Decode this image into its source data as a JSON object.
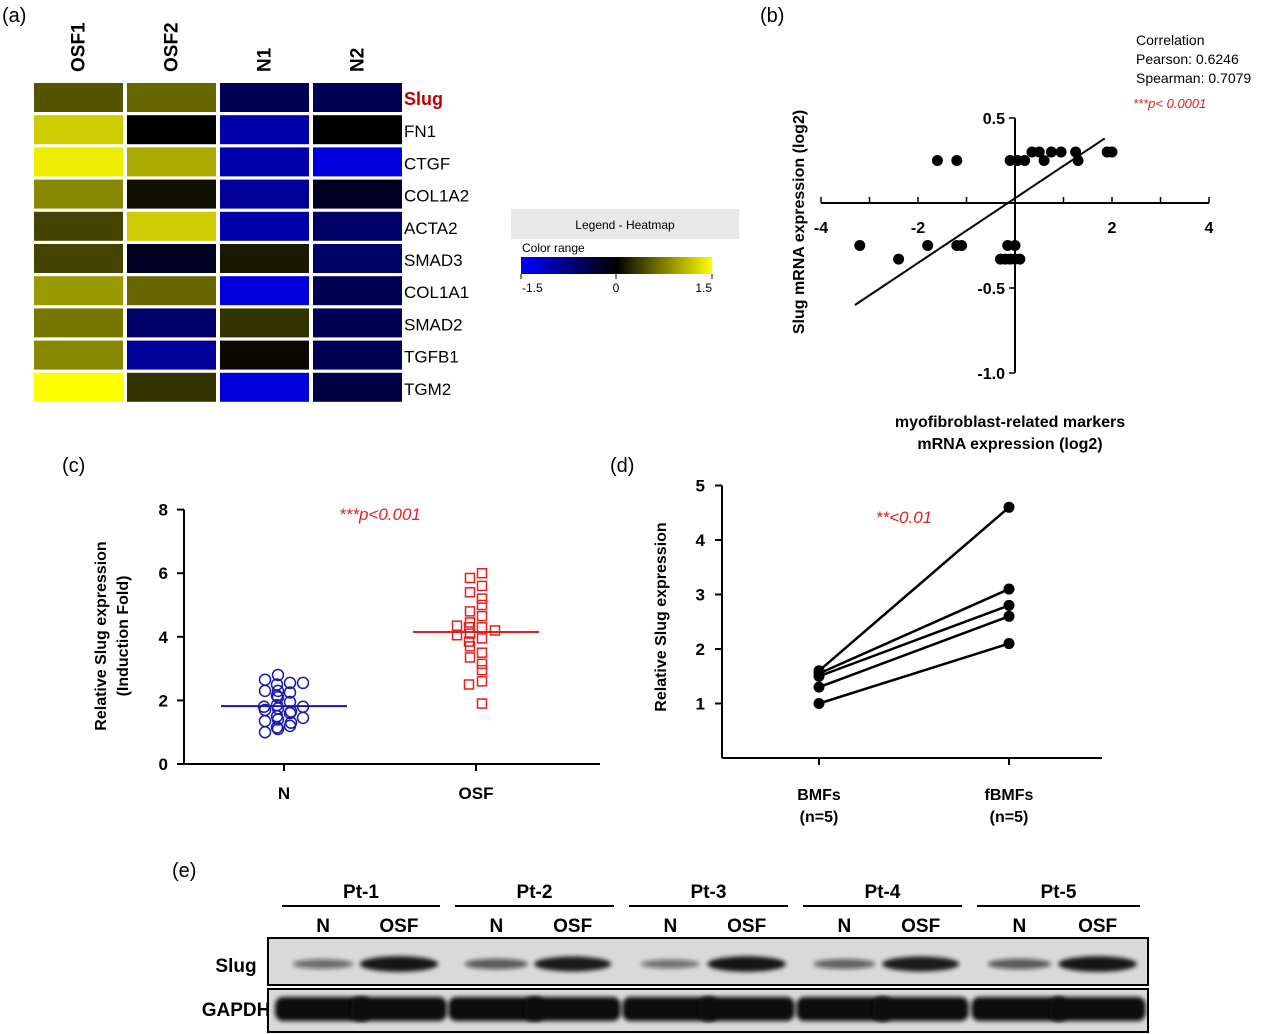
{
  "colors": {
    "low": "#0000ff",
    "mid": "#000000",
    "high": "#ffff00",
    "n_group": "#1a1aa6",
    "osf_group": "#e32020",
    "significance": "#e32020",
    "slug_label": "#c00000"
  },
  "panel_labels": [
    "(a)",
    "(b)",
    "(c)",
    "(d)",
    "(e)"
  ],
  "chart_data": [
    {
      "type": "heatmap",
      "columns": [
        "OSF1",
        "OSF2",
        "N1",
        "N2"
      ],
      "rows": [
        "Slug",
        "FN1",
        "CTGF",
        "COL1A2",
        "ACTA2",
        "SMAD3",
        "COL1A1",
        "SMAD2",
        "TGFB1",
        "TGM2"
      ],
      "highlight_row": "Slug",
      "values": [
        [
          0.5,
          0.6,
          -0.5,
          -0.5
        ],
        [
          1.2,
          0.0,
          -1.0,
          0.0
        ],
        [
          1.4,
          1.0,
          -1.0,
          -1.3
        ],
        [
          0.8,
          0.1,
          -0.9,
          -0.2
        ],
        [
          0.4,
          1.2,
          -1.0,
          -0.6
        ],
        [
          0.4,
          -0.2,
          0.15,
          -0.6
        ],
        [
          0.9,
          0.6,
          -1.3,
          -0.5
        ],
        [
          0.7,
          -0.6,
          0.3,
          -0.5
        ],
        [
          0.8,
          -0.9,
          0.05,
          -0.5
        ],
        [
          1.5,
          0.3,
          -1.3,
          -0.4
        ]
      ],
      "legend": {
        "title": "Legend - Heatmap",
        "subtitle": "Color range",
        "ticks": [
          "-1.5",
          "0",
          "1.5"
        ]
      }
    },
    {
      "type": "scatter",
      "xlabel_lines": [
        "myofibroblast-related markers",
        "mRNA expression (log2)"
      ],
      "ylabel": "Slug mRNA expression (log2)",
      "x_ticks": [
        "-4",
        "-2",
        "2",
        "4"
      ],
      "y_ticks": [
        "0.5",
        "-0.5",
        "-1.0"
      ],
      "xlim": [
        -4,
        4
      ],
      "ylim": [
        -1.0,
        0.5
      ],
      "correlation_title": "Correlation",
      "pearson": "Pearson: 0.6246",
      "spearman": "Spearman: 0.7079",
      "significance": "***p< 0.0001",
      "fit_line": [
        [
          -3.3,
          -0.6
        ],
        [
          1.85,
          0.38
        ]
      ],
      "points": [
        [
          -1.6,
          0.25
        ],
        [
          -1.2,
          0.25
        ],
        [
          -0.1,
          0.25
        ],
        [
          0.05,
          0.25
        ],
        [
          0.2,
          0.25
        ],
        [
          0.35,
          0.3
        ],
        [
          0.5,
          0.3
        ],
        [
          0.6,
          0.25
        ],
        [
          0.75,
          0.3
        ],
        [
          0.95,
          0.3
        ],
        [
          1.25,
          0.3
        ],
        [
          1.3,
          0.25
        ],
        [
          1.9,
          0.3
        ],
        [
          2.0,
          0.3
        ],
        [
          -3.2,
          -0.25
        ],
        [
          -2.4,
          -0.33
        ],
        [
          -1.8,
          -0.25
        ],
        [
          -1.2,
          -0.25
        ],
        [
          -1.1,
          -0.25
        ],
        [
          -0.15,
          -0.25
        ],
        [
          0.0,
          -0.25
        ],
        [
          -0.3,
          -0.33
        ],
        [
          -0.2,
          -0.33
        ],
        [
          -0.1,
          -0.33
        ],
        [
          0.0,
          -0.33
        ],
        [
          0.1,
          -0.33
        ]
      ]
    },
    {
      "type": "scatter",
      "ylabel_lines": [
        "Relative Slug expression",
        "(Induction Fold)"
      ],
      "categories": [
        "N",
        "OSF"
      ],
      "y_ticks": [
        "0",
        "2",
        "4",
        "6",
        "8"
      ],
      "ylim": [
        0,
        8
      ],
      "significance": "***p<0.001",
      "series": [
        {
          "category": "N",
          "mean": 1.82,
          "values": [
            2.8,
            2.65,
            2.55,
            2.5,
            2.55,
            2.3,
            2.25,
            2.3,
            2.15,
            2.1,
            1.95,
            1.85,
            1.8,
            1.8,
            1.75,
            1.7,
            1.65,
            1.6,
            1.5,
            1.45,
            1.4,
            1.35,
            1.3,
            1.2,
            1.15,
            1.1,
            1.0
          ]
        },
        {
          "category": "OSF",
          "mean": 4.15,
          "values": [
            6.0,
            5.85,
            5.6,
            5.4,
            5.2,
            5.0,
            4.8,
            4.65,
            4.45,
            4.35,
            4.3,
            4.3,
            4.2,
            4.1,
            4.05,
            3.95,
            3.85,
            3.7,
            3.5,
            3.35,
            3.15,
            2.95,
            2.6,
            2.5,
            1.9
          ]
        }
      ]
    },
    {
      "type": "line",
      "ylabel": "Relative Slug expression",
      "categories": [
        "BMFs\n(n=5)",
        "fBMFs\n(n=5)"
      ],
      "category_lines": [
        [
          "BMFs",
          "(n=5)"
        ],
        [
          "fBMFs",
          "(n=5)"
        ]
      ],
      "y_ticks": [
        "1",
        "2",
        "3",
        "4",
        "5"
      ],
      "ylim": [
        0,
        5
      ],
      "significance": "**<0.01",
      "pairs": [
        [
          1.6,
          4.6
        ],
        [
          1.55,
          3.1
        ],
        [
          1.5,
          2.8
        ],
        [
          1.3,
          2.6
        ],
        [
          1.0,
          2.1
        ]
      ]
    },
    {
      "type": "table",
      "patients": [
        "Pt-1",
        "Pt-2",
        "Pt-3",
        "Pt-4",
        "Pt-5"
      ],
      "lanes": [
        "N",
        "OSF",
        "N",
        "OSF",
        "N",
        "OSF",
        "N",
        "OSF",
        "N",
        "OSF"
      ],
      "rows": [
        "Slug",
        "GAPDH"
      ],
      "slug_intensity": [
        0.35,
        0.95,
        0.45,
        0.9,
        0.3,
        0.95,
        0.4,
        0.9,
        0.45,
        0.95
      ],
      "gapdh_intensity": [
        1,
        1,
        1,
        1,
        1,
        1,
        1,
        1,
        1,
        1
      ]
    }
  ]
}
